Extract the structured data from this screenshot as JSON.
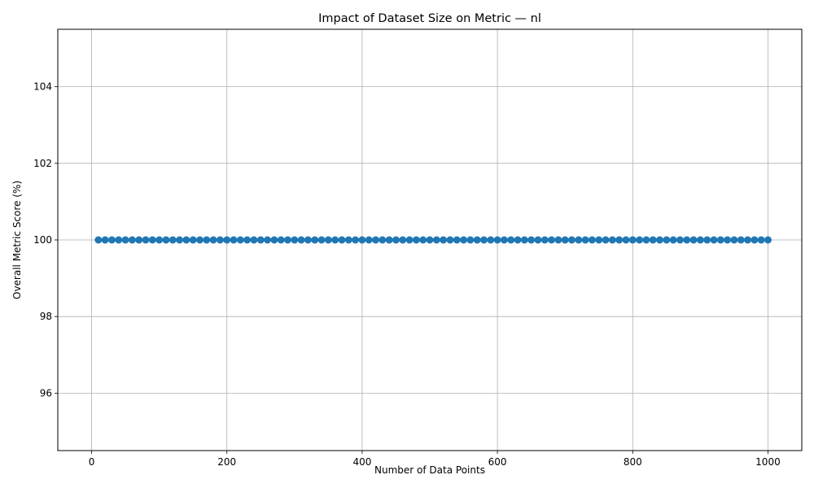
{
  "chart_data": {
    "type": "line",
    "title": "Impact of Dataset Size on Metric — nl",
    "xlabel": "Number of Data Points",
    "ylabel": "Overall Metric Score (%)",
    "xlim": [
      -50,
      1050
    ],
    "ylim": [
      94.5,
      105.5
    ],
    "x_ticks": [
      0,
      200,
      400,
      600,
      800,
      1000
    ],
    "y_ticks": [
      96,
      98,
      100,
      102,
      104
    ],
    "grid": true,
    "series": [
      {
        "color": "#1f77b4",
        "marker": "circle",
        "x": [
          10,
          20,
          30,
          40,
          50,
          60,
          70,
          80,
          90,
          100,
          110,
          120,
          130,
          140,
          150,
          160,
          170,
          180,
          190,
          200,
          210,
          220,
          230,
          240,
          250,
          260,
          270,
          280,
          290,
          300,
          310,
          320,
          330,
          340,
          350,
          360,
          370,
          380,
          390,
          400,
          410,
          420,
          430,
          440,
          450,
          460,
          470,
          480,
          490,
          500,
          510,
          520,
          530,
          540,
          550,
          560,
          570,
          580,
          590,
          600,
          610,
          620,
          630,
          640,
          650,
          660,
          670,
          680,
          690,
          700,
          710,
          720,
          730,
          740,
          750,
          760,
          770,
          780,
          790,
          800,
          810,
          820,
          830,
          840,
          850,
          860,
          870,
          880,
          890,
          900,
          910,
          920,
          930,
          940,
          950,
          960,
          970,
          980,
          990,
          1000
        ],
        "y": [
          100,
          100,
          100,
          100,
          100,
          100,
          100,
          100,
          100,
          100,
          100,
          100,
          100,
          100,
          100,
          100,
          100,
          100,
          100,
          100,
          100,
          100,
          100,
          100,
          100,
          100,
          100,
          100,
          100,
          100,
          100,
          100,
          100,
          100,
          100,
          100,
          100,
          100,
          100,
          100,
          100,
          100,
          100,
          100,
          100,
          100,
          100,
          100,
          100,
          100,
          100,
          100,
          100,
          100,
          100,
          100,
          100,
          100,
          100,
          100,
          100,
          100,
          100,
          100,
          100,
          100,
          100,
          100,
          100,
          100,
          100,
          100,
          100,
          100,
          100,
          100,
          100,
          100,
          100,
          100,
          100,
          100,
          100,
          100,
          100,
          100,
          100,
          100,
          100,
          100,
          100,
          100,
          100,
          100,
          100,
          100,
          100,
          100,
          100,
          100
        ]
      }
    ]
  }
}
